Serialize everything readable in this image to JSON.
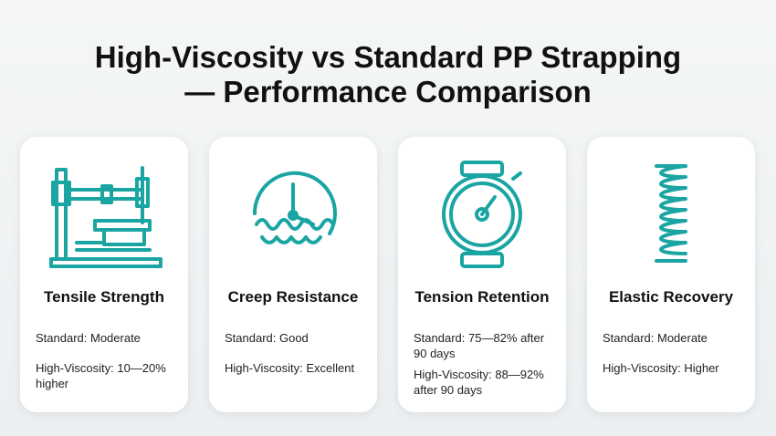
{
  "title": "High-Viscosity vs Standard PP Strapping — Performance Comparison",
  "cards": [
    {
      "heading": "Tensile Strength",
      "standard": "Standard: Moderate",
      "high_viscosity": "High-Viscosity: 10—20% higher"
    },
    {
      "heading": "Creep Resistance",
      "standard": "Standard: Good",
      "high_viscosity": "High-Viscosity: Excellent"
    },
    {
      "heading": "Tension Retention",
      "standard": "Standard: 75—82% after 90 days",
      "high_viscosity": "High-Viscosity: 88—92% after 90 days"
    },
    {
      "heading": "Elastic Recovery",
      "standard": "Standard: Moderate",
      "high_viscosity": "High-Viscosity: Higher"
    }
  ]
}
